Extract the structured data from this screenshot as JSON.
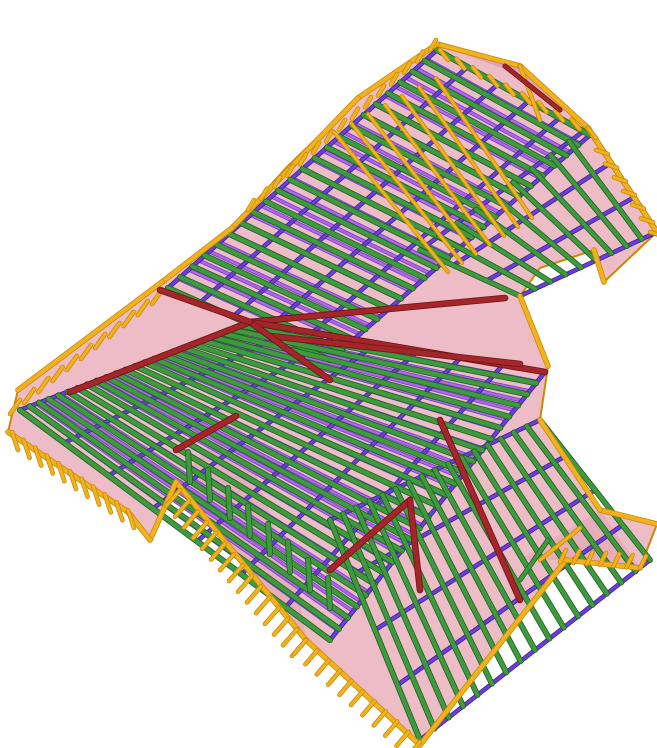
{
  "scene": {
    "icon": "roof-framing-3d-icon",
    "background": "#ffffff"
  },
  "colors": {
    "roof_surface": "#e9a9b6",
    "roof_surface_dark": "#d993a2",
    "purlin": "#f1b21f",
    "purlin_edge": "#c98a05",
    "rafter": "#3f9a3f",
    "rafter_edge": "#1f5f22",
    "batten": "#6a3fd6",
    "batten_light": "#b764e6",
    "hip": "#a4262a",
    "hip_edge": "#6d1416"
  }
}
